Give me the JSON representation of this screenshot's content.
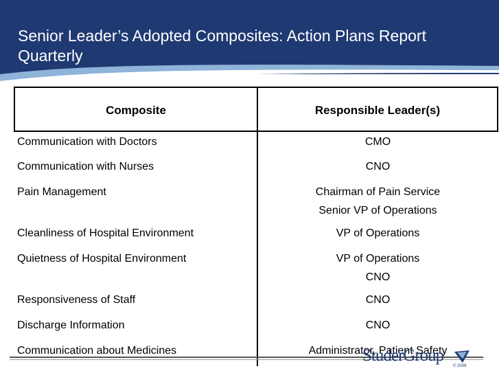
{
  "slide": {
    "title": "Senior Leader’s Adopted Composites: Action Plans Report Quarterly"
  },
  "table": {
    "headers": [
      "Composite",
      "Responsible Leader(s)"
    ],
    "rows": [
      {
        "composite": "Communication with Doctors",
        "leaders": [
          "CMO"
        ]
      },
      {
        "composite": "Communication with Nurses",
        "leaders": [
          "CNO"
        ]
      },
      {
        "composite": "Pain Management",
        "leaders": [
          "Chairman of Pain Service",
          "Senior VP of Operations"
        ]
      },
      {
        "composite": "Cleanliness of Hospital Environment",
        "leaders": [
          "VP of Operations"
        ]
      },
      {
        "composite": "Quietness of Hospital Environment",
        "leaders": [
          "VP of Operations",
          "CNO"
        ]
      },
      {
        "composite": "Responsiveness of Staff",
        "leaders": [
          "CNO"
        ]
      },
      {
        "composite": "Discharge Information",
        "leaders": [
          "CNO"
        ]
      },
      {
        "composite": "Communication about Medicines",
        "leaders": [
          "Administrator, Patient Safety"
        ]
      }
    ]
  },
  "footer": {
    "logo_text": "StuderGroup",
    "logo_sub": "© 2008"
  },
  "colors": {
    "header_bg": "#1f3a72",
    "swoosh": "#8fb3d9"
  }
}
